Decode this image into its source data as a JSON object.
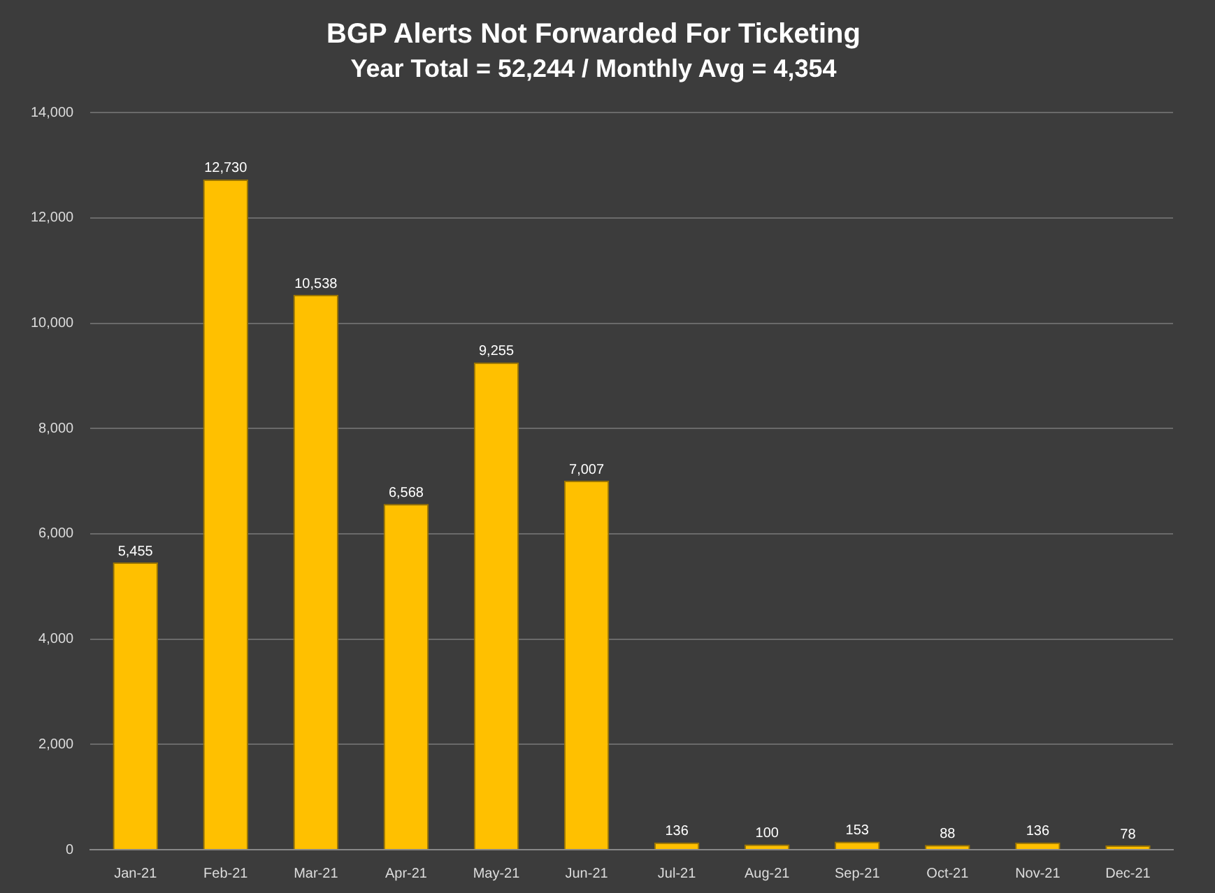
{
  "chart_data": {
    "type": "bar",
    "title": "BGP Alerts Not Forwarded For Ticketing",
    "subtitle": "Year Total = 52,244 / Monthly Avg = 4,354",
    "categories": [
      "Jan-21",
      "Feb-21",
      "Mar-21",
      "Apr-21",
      "May-21",
      "Jun-21",
      "Jul-21",
      "Aug-21",
      "Sep-21",
      "Oct-21",
      "Nov-21",
      "Dec-21"
    ],
    "values": [
      5455,
      12730,
      10538,
      6568,
      9255,
      7007,
      136,
      100,
      153,
      88,
      136,
      78
    ],
    "value_labels": [
      "5,455",
      "12,730",
      "10,538",
      "6,568",
      "9,255",
      "7,007",
      "136",
      "100",
      "153",
      "88",
      "136",
      "78"
    ],
    "color": "#ffc000",
    "ylim": [
      0,
      14000
    ],
    "yticks": [
      {
        "value": 0,
        "label": "0"
      },
      {
        "value": 2000,
        "label": "2,000"
      },
      {
        "value": 4000,
        "label": "4,000"
      },
      {
        "value": 6000,
        "label": "6,000"
      },
      {
        "value": 8000,
        "label": "8,000"
      },
      {
        "value": 10000,
        "label": "10,000"
      },
      {
        "value": 12000,
        "label": "12,000"
      },
      {
        "value": 14000,
        "label": "14,000"
      }
    ],
    "grid": "y"
  }
}
